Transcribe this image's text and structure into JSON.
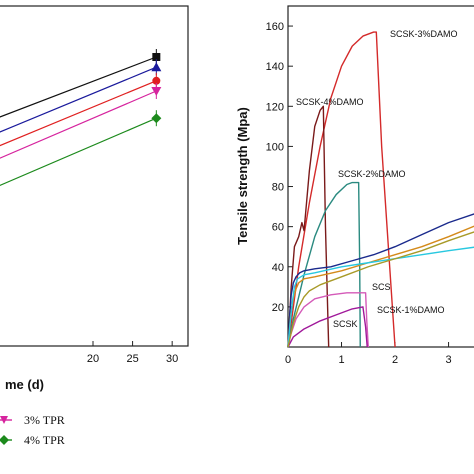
{
  "chart_data": [
    {
      "type": "line",
      "title": "",
      "xlabel": "me (d)",
      "ylabel": "",
      "xlim": [
        8,
        32
      ],
      "ylim": [
        0,
        100
      ],
      "xticks": [
        "20",
        "25",
        "30"
      ],
      "legend": {
        "placement": "bottom-left",
        "entries": [
          "3% TPR",
          "4% TPR"
        ]
      },
      "series": [
        {
          "key": "black",
          "color": "#111111",
          "marker": "square",
          "x": [
            0,
            28
          ],
          "y": [
            60,
            85
          ]
        },
        {
          "key": "navy",
          "color": "#1a1a9c",
          "marker": "triangle-up",
          "x": [
            0,
            28
          ],
          "y": [
            55,
            82
          ]
        },
        {
          "key": "red",
          "color": "#e02020",
          "marker": "circle",
          "x": [
            0,
            28
          ],
          "y": [
            51,
            78
          ]
        },
        {
          "key": "magenta",
          "color": "#d6249e",
          "marker": "triangle-down",
          "x": [
            0,
            28
          ],
          "y": [
            47,
            75
          ]
        },
        {
          "key": "green",
          "color": "#1c8a1c",
          "marker": "diamond",
          "x": [
            0,
            28
          ],
          "y": [
            39,
            67
          ]
        }
      ]
    },
    {
      "type": "line",
      "title": "",
      "xlabel": "",
      "ylabel": "Tensile strength (Mpa)",
      "xlim": [
        0,
        3.55
      ],
      "ylim": [
        0,
        170
      ],
      "xticks": [
        "0",
        "1",
        "2",
        "3"
      ],
      "yticks": [
        "20",
        "40",
        "60",
        "80",
        "100",
        "120",
        "140",
        "160"
      ],
      "annotations": [
        "SCSK-3%DAMO",
        "SCSK-4%DAMO",
        "SCSK-2%DAMO",
        "SCS",
        "SCSK",
        "SCSK-1%DAMO"
      ],
      "series": [
        {
          "key": "scsk3",
          "label": "SCSK-3%DAMO",
          "color": "#d42a2a",
          "x": [
            0,
            0.2,
            0.4,
            0.6,
            0.8,
            1.0,
            1.2,
            1.4,
            1.6,
            1.65,
            1.75,
            1.9,
            2.0
          ],
          "y": [
            0,
            40,
            72,
            100,
            124,
            140,
            150,
            155,
            157,
            157,
            100,
            40,
            0
          ]
        },
        {
          "key": "scsk4",
          "label": "SCSK-4%DAMO",
          "color": "#7a1a1a",
          "x": [
            0,
            0.06,
            0.12,
            0.2,
            0.26,
            0.3,
            0.4,
            0.5,
            0.6,
            0.66,
            0.7,
            0.76
          ],
          "y": [
            0,
            30,
            50,
            55,
            62,
            58,
            88,
            110,
            118,
            120,
            60,
            0
          ]
        },
        {
          "key": "scsk2",
          "label": "SCSK-2%DAMO",
          "color": "#2a8a80",
          "x": [
            0,
            0.1,
            0.3,
            0.5,
            0.7,
            0.9,
            1.1,
            1.2,
            1.3,
            1.32,
            1.34,
            1.35
          ],
          "y": [
            0,
            14,
            36,
            55,
            68,
            76,
            81,
            82,
            82,
            82,
            40,
            0
          ]
        },
        {
          "key": "scs",
          "label": "SCS",
          "color": "#d45ab8",
          "x": [
            0,
            0.05,
            0.15,
            0.3,
            0.5,
            0.8,
            1.1,
            1.35,
            1.45,
            1.47,
            1.5
          ],
          "y": [
            0,
            6,
            14,
            20,
            24,
            26,
            27,
            27,
            27,
            14,
            0
          ]
        },
        {
          "key": "scsk",
          "label": "SCSK",
          "color": "#a0189a",
          "x": [
            0,
            0.1,
            0.3,
            0.6,
            0.9,
            1.2,
            1.4,
            1.45,
            1.48
          ],
          "y": [
            0,
            5,
            9,
            13,
            16,
            19,
            20,
            10,
            0
          ]
        },
        {
          "key": "blue",
          "color": "#1a2a8c",
          "x": [
            0,
            0.03,
            0.06,
            0.1,
            0.15,
            0.22,
            0.3,
            0.5,
            0.8,
            1.2,
            1.6,
            2.0,
            2.5,
            3.0,
            3.55
          ],
          "y": [
            0,
            15,
            26,
            32,
            35,
            37,
            38,
            39,
            40,
            43,
            46,
            50,
            56,
            62,
            67
          ]
        },
        {
          "key": "orange",
          "color": "#d48a1a",
          "x": [
            0,
            0.05,
            0.1,
            0.15,
            0.2,
            0.3,
            0.5,
            1.0,
            1.5,
            2.0,
            2.5,
            3.0,
            3.55
          ],
          "y": [
            0,
            16,
            24,
            29,
            32,
            34,
            35,
            38,
            42,
            46,
            50,
            55,
            61
          ]
        },
        {
          "key": "cyan",
          "color": "#28c8e0",
          "x": [
            0,
            0.04,
            0.08,
            0.12,
            0.18,
            0.3,
            0.5,
            1.0,
            1.5,
            2.0,
            2.5,
            3.0,
            3.55
          ],
          "y": [
            0,
            12,
            22,
            30,
            34,
            36,
            37,
            40,
            42,
            44,
            46,
            48,
            50
          ]
        },
        {
          "key": "olive",
          "color": "#a89a28",
          "x": [
            0,
            0.1,
            0.2,
            0.3,
            0.4,
            0.6,
            1.0,
            1.5,
            2.0,
            2.5,
            3.0,
            3.55
          ],
          "y": [
            0,
            12,
            20,
            25,
            28,
            31,
            35,
            40,
            44,
            48,
            53,
            58
          ]
        }
      ]
    }
  ]
}
